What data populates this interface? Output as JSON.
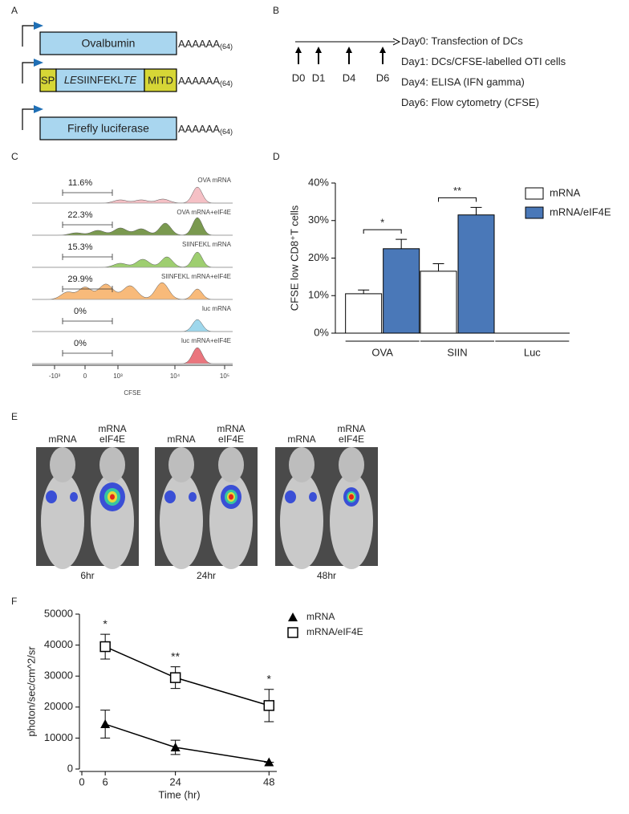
{
  "panel_labels": [
    "A",
    "B",
    "C",
    "D",
    "E",
    "F"
  ],
  "constructs": [
    {
      "label": "Ovalbumin",
      "tail": "AAAAAA",
      "tail_count": "(64)"
    },
    {
      "parts": [
        "SP",
        "LE",
        "SIINFEKL",
        "TE",
        "MITD"
      ],
      "tail": "AAAAAA",
      "tail_count": "(64)"
    },
    {
      "label": "Firefly luciferase",
      "tail": "AAAAAA",
      "tail_count": "(64)"
    }
  ],
  "timeline": {
    "days": [
      "D0",
      "D1",
      "D4",
      "D6"
    ],
    "events": [
      "Day0: Transfection of DCs",
      "Day1: DCs/CFSE-labelled OTI cells",
      "Day4: ELISA (IFN gamma)",
      "Day6: Flow cytometry (CFSE)"
    ]
  },
  "flow": {
    "rows": [
      {
        "name": "OVA mRNA",
        "percent": "11.6%"
      },
      {
        "name": "OVA mRNA+eIF4E",
        "percent": "22.3%"
      },
      {
        "name": "SIINFEKL mRNA",
        "percent": "15.3%"
      },
      {
        "name": "SIINFEKL mRNA+eIF4E",
        "percent": "29.9%"
      },
      {
        "name": "luc mRNA",
        "percent": "0%"
      },
      {
        "name": "luc mRNA+eIF4E",
        "percent": "0%"
      }
    ],
    "x_ticks": [
      "-10³",
      "0",
      "10³",
      "10⁴",
      "10⁵"
    ],
    "x_label": "CFSE"
  },
  "imaging": [
    {
      "lanes": [
        [
          "mRNA"
        ],
        [
          "mRNA",
          "eIF4E"
        ]
      ],
      "time": "6hr"
    },
    {
      "lanes": [
        [
          "mRNA"
        ],
        [
          "mRNA",
          "eIF4E"
        ]
      ],
      "time": "24hr"
    },
    {
      "lanes": [
        [
          "mRNA"
        ],
        [
          "mRNA",
          "eIF4E"
        ]
      ],
      "time": "48hr"
    }
  ],
  "chart_data": [
    {
      "type": "bar",
      "y_label": "CFSE low CD8⁺T cells",
      "categories": [
        "OVA",
        "SIIN",
        "Luc"
      ],
      "series": [
        {
          "name": "mRNA",
          "color": "#ffffff",
          "values": [
            10.5,
            16.5,
            0
          ],
          "errors": [
            1,
            2,
            0
          ]
        },
        {
          "name": "mRNA/eIF4E",
          "color": "#4a78b8",
          "values": [
            22.5,
            31.5,
            0
          ],
          "errors": [
            2.5,
            2,
            0
          ]
        }
      ],
      "significance": [
        "*",
        "**",
        null
      ],
      "ylim": [
        0,
        40
      ],
      "yticks": [
        {
          "value": 0,
          "label": "0%"
        },
        {
          "value": 10,
          "label": "10%"
        },
        {
          "value": 20,
          "label": "20%"
        },
        {
          "value": 30,
          "label": "30%"
        },
        {
          "value": 40,
          "label": "40%"
        }
      ]
    },
    {
      "type": "line",
      "x_label": "Time (hr)",
      "y_label": "photon/sec/cm^2/sr",
      "x": [
        6,
        24,
        48
      ],
      "series": [
        {
          "name": "mRNA",
          "color": "#000000",
          "marker": "triangle",
          "values": [
            14500,
            7000,
            2200
          ],
          "errors": [
            4500,
            2300,
            0
          ]
        },
        {
          "name": "mRNA/eIF4E",
          "color": "#000000",
          "marker": "square",
          "values": [
            39500,
            29500,
            20500
          ],
          "errors": [
            4000,
            3500,
            5200
          ]
        }
      ],
      "significance": [
        "*",
        "**",
        "*"
      ],
      "xlim": [
        0,
        50
      ],
      "xticks": [
        0,
        6,
        24,
        48
      ],
      "ylim": [
        0,
        50000
      ],
      "yticks": [
        0,
        10000,
        20000,
        30000,
        40000,
        50000
      ]
    }
  ]
}
